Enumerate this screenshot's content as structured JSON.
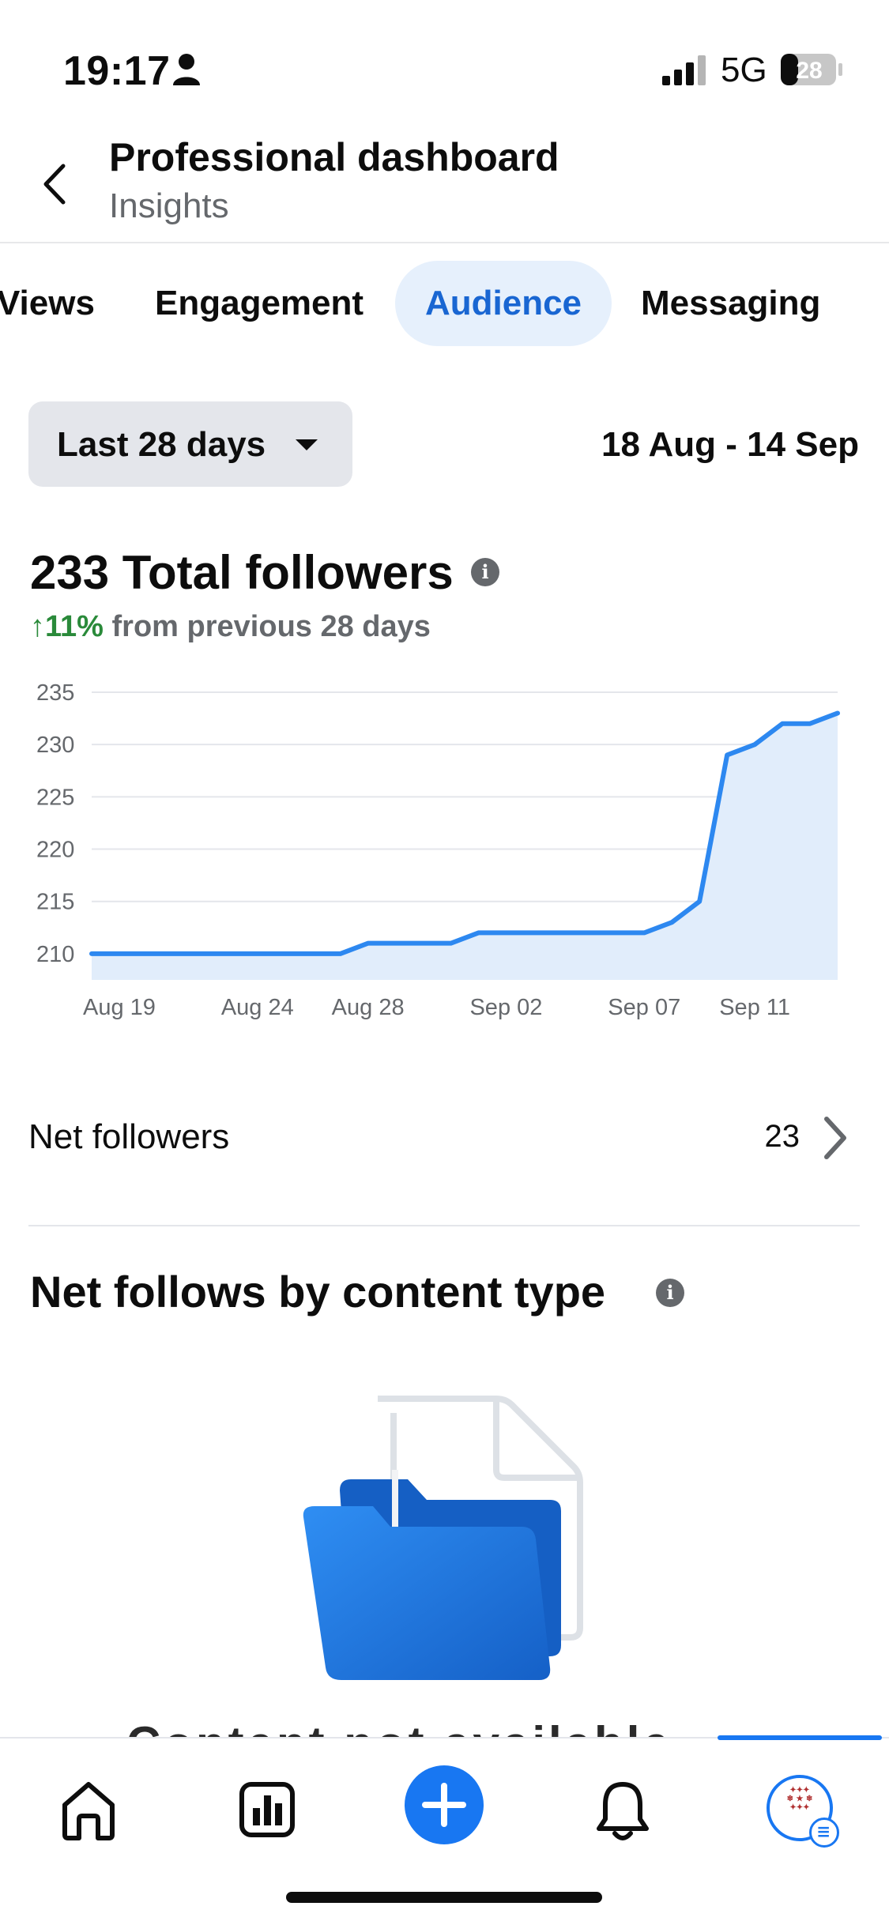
{
  "status_bar": {
    "time": "19:17",
    "network": "5G",
    "battery": "28"
  },
  "header": {
    "title": "Professional dashboard",
    "subtitle": "Insights"
  },
  "tabs": [
    {
      "label": "Views",
      "active": false
    },
    {
      "label": "Engagement",
      "active": false
    },
    {
      "label": "Audience",
      "active": true
    },
    {
      "label": "Messaging",
      "active": false
    }
  ],
  "filter": {
    "period_label": "Last 28 days",
    "date_range": "18 Aug - 14 Sep"
  },
  "followers": {
    "total_label": "233 Total followers",
    "change_pct": "↑11%",
    "change_text": " from previous 28 days"
  },
  "chart_data": {
    "type": "area",
    "x": [
      "Aug 18",
      "Aug 19",
      "Aug 20",
      "Aug 21",
      "Aug 22",
      "Aug 23",
      "Aug 24",
      "Aug 25",
      "Aug 26",
      "Aug 27",
      "Aug 28",
      "Aug 29",
      "Aug 30",
      "Aug 31",
      "Sep 01",
      "Sep 02",
      "Sep 03",
      "Sep 04",
      "Sep 05",
      "Sep 06",
      "Sep 07",
      "Sep 08",
      "Sep 09",
      "Sep 10",
      "Sep 11",
      "Sep 12",
      "Sep 13",
      "Sep 14"
    ],
    "series": [
      {
        "values": [
          210,
          210,
          210,
          210,
          210,
          210,
          210,
          210,
          210,
          210,
          211,
          211,
          211,
          211,
          212,
          212,
          212,
          212,
          212,
          212,
          212,
          213,
          215,
          229,
          230,
          232,
          232,
          233
        ]
      }
    ],
    "x_tick_labels": [
      "Aug 19",
      "Aug 24",
      "Aug 28",
      "Sep 02",
      "Sep 07",
      "Sep 11"
    ],
    "y_ticks": [
      210,
      215,
      220,
      225,
      230,
      235
    ],
    "ylim": [
      207.5,
      235
    ],
    "grid": true,
    "line_color": "#2d88f0",
    "fill_color": "#e1edfb"
  },
  "net_followers": {
    "label": "Net followers",
    "value": "23"
  },
  "content_type": {
    "title": "Net follows by content type"
  },
  "bottom_nav": {
    "items": [
      "home-icon",
      "insights-icon",
      "create-icon",
      "notifications-icon",
      "profile-avatar"
    ],
    "accent": "#1877f2"
  }
}
